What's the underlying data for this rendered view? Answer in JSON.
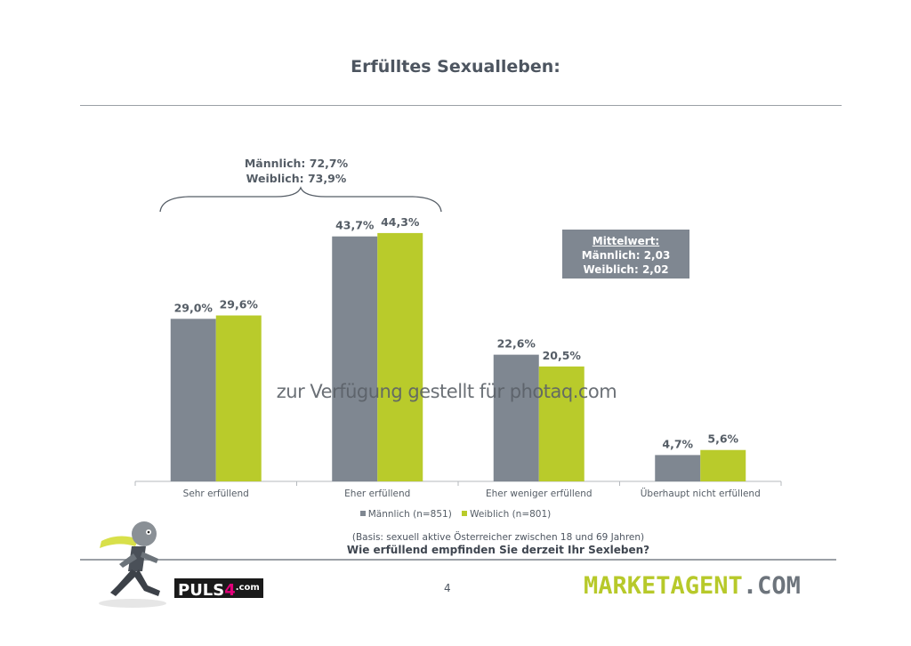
{
  "title": "Erfülltes Sexualleben:",
  "chart_data": {
    "type": "bar",
    "categories": [
      "Sehr erfüllend",
      "Eher erfüllend",
      "Eher weniger erfüllend",
      "Überhaupt nicht erfüllend"
    ],
    "series": [
      {
        "name": "Männlich (n=851)",
        "values": [
          29.0,
          43.7,
          22.6,
          4.7
        ],
        "labels": [
          "29,0%",
          "43,7%",
          "22,6%",
          "4,7%"
        ],
        "color": "#7f8791"
      },
      {
        "name": "Weiblich (n=801)",
        "values": [
          29.6,
          44.3,
          20.5,
          5.6
        ],
        "labels": [
          "29,6%",
          "44,3%",
          "20,5%",
          "5,6%"
        ],
        "color": "#b9cb2b"
      }
    ],
    "ylim": [
      0,
      50
    ],
    "legend_position": "bottom",
    "grid": false
  },
  "bracket": {
    "line1": "Männlich: 72,7%",
    "line2": "Weiblich: 73,9%"
  },
  "mean_box": {
    "heading": "Mittelwert:",
    "line1": "Männlich: 2,03",
    "line2": "Weiblich: 2,02"
  },
  "watermark": "zur Verfügung gestellt für photaq.com",
  "basis": "(Basis: sexuell aktive Österreicher zwischen 18 und 69 Jahren)",
  "question": "Wie erfüllend empfinden Sie derzeit Ihr Sexleben?",
  "page_number": "4",
  "logos": {
    "puls": {
      "p1": "PULS",
      "p2": "4",
      "p3": ".com"
    },
    "marketagent": {
      "p1": "MARKETAGENT",
      "p2": ".COM"
    }
  }
}
